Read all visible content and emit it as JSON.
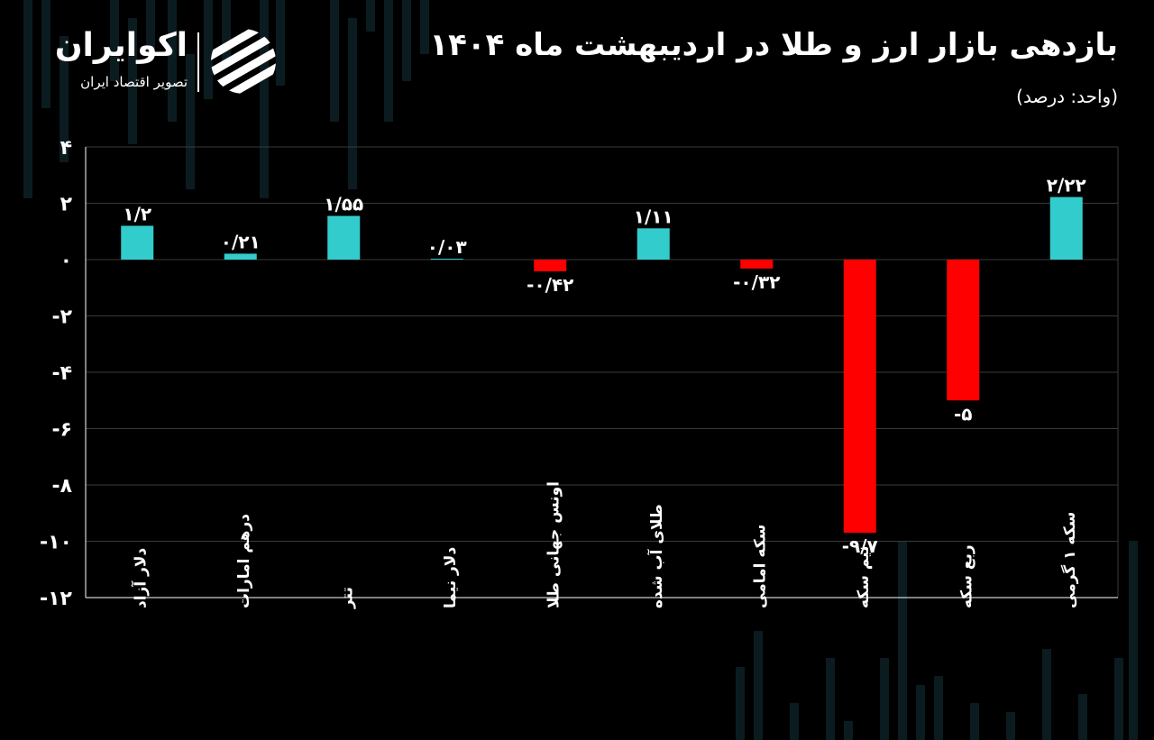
{
  "brand": {
    "name": "اکوایران",
    "tagline": "تصویر اقتصاد ایران"
  },
  "title": "بازدهی بازار ارز و طلا در اردیبهشت ماه ۱۴۰۴",
  "unit_label": "(واحد: درصد)",
  "colors": {
    "positive": "#33CCCC",
    "negative": "#FF0000",
    "background": "#000000",
    "grid": "#3a3a3a",
    "text": "#ffffff"
  },
  "chart_data": {
    "type": "bar",
    "categories": [
      "دلار آزاد",
      "درهم امارات",
      "تتر",
      "دلار نیما",
      "اونس جهانی طلا",
      "طلای آب شده",
      "سکه امامی",
      "نیم سکه",
      "ربع سکه",
      "سکه ۱ گرمی"
    ],
    "values": [
      1.2,
      0.21,
      1.55,
      0.03,
      -0.42,
      1.11,
      -0.32,
      -9.7,
      -5,
      2.22
    ],
    "value_labels": [
      "۱/۲",
      "۰/۲۱",
      "۱/۵۵",
      "۰/۰۳",
      "-۰/۴۲",
      "۱/۱۱",
      "-۰/۳۲",
      "-۹/۷",
      "-۵",
      "۲/۲۲"
    ],
    "ylim": [
      -12,
      4
    ],
    "yticks": [
      4,
      2,
      0,
      -2,
      -4,
      -6,
      -8,
      -10,
      -12
    ],
    "ytick_labels": [
      "۴",
      "۲",
      "۰",
      "-۲",
      "-۴",
      "-۶",
      "-۸",
      "-۱۰",
      "-۱۲"
    ],
    "grid": true,
    "legend": "none"
  }
}
